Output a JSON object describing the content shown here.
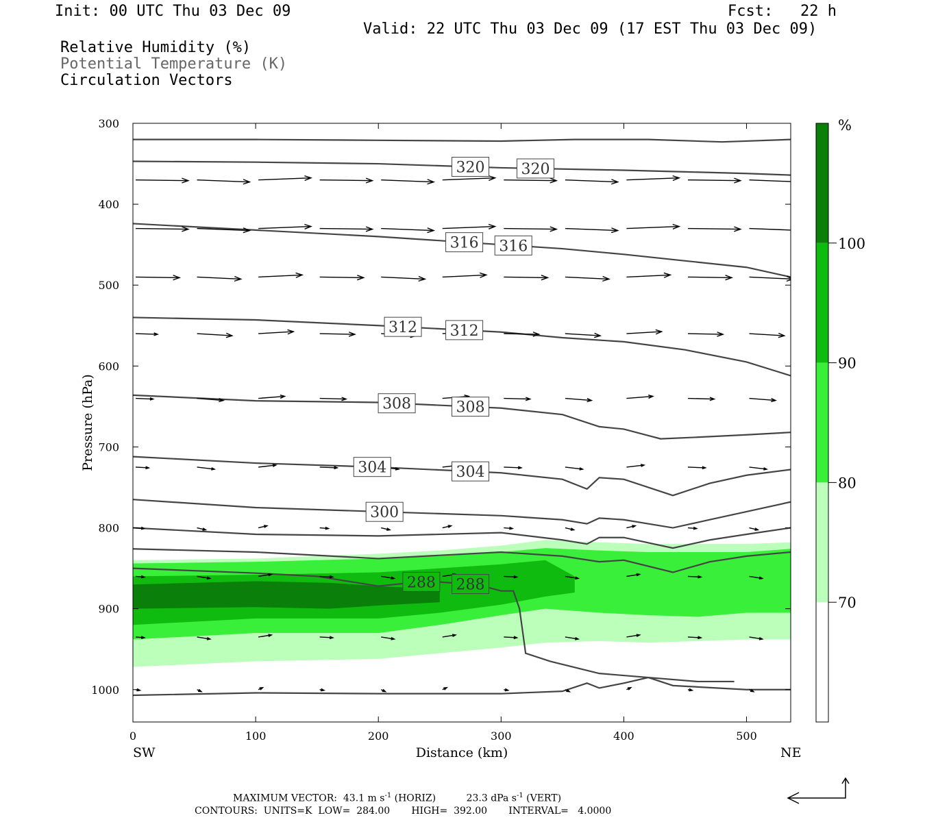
{
  "header": {
    "init": "Init: 00 UTC Thu 03 Dec 09",
    "fcst": "Fcst:   22 h",
    "valid": "Valid: 22 UTC Thu 03 Dec 09 (17 EST Thu 03 Dec 09)",
    "fields": [
      "Relative Humidity (%)",
      "Potential Temperature (K)",
      "Circulation Vectors"
    ]
  },
  "footer": {
    "max_vector_label": "MAXIMUM VECTOR:",
    "horiz_value": "43.1 m s",
    "horiz_unit": "(HORIZ)",
    "vert_value": "23.3 dPa s",
    "vert_unit": "(VERT)",
    "exponent": "-1",
    "contours": "CONTOURS:  UNITS=K  LOW=  284.00       HIGH=  392.00       INTERVAL=   4.0000"
  },
  "colors": {
    "rh_70_80": "#bbffbb",
    "rh_80_90": "#3aef3a",
    "rh_90_100": "#10bb10",
    "rh_100_plus": "#0a7f0a",
    "theta_line": "#444444",
    "vector": "#000000"
  },
  "chart_data": {
    "type": "cross-section",
    "xlabel": "Distance (km)",
    "ylabel": "Pressure (hPa)",
    "xlim": [
      0,
      536
    ],
    "ylim": [
      1040,
      300
    ],
    "x_ticks": [
      0,
      100,
      200,
      300,
      400,
      500
    ],
    "y_ticks": [
      300,
      400,
      500,
      600,
      700,
      800,
      900,
      1000
    ],
    "left_end_label": "SW",
    "right_end_label": "NE",
    "colorbar": {
      "unit": "%",
      "levels": [
        70,
        80,
        90,
        100
      ],
      "colors": [
        "#ffffff",
        "#bbffbb",
        "#3aef3a",
        "#10bb10",
        "#0a7f0a"
      ]
    },
    "theta_contours": [
      {
        "x": [
          0,
          100,
          200,
          300,
          360,
          420,
          480,
          536
        ],
        "p": [
          320,
          320,
          321,
          322,
          320,
          320,
          323,
          320
        ]
      },
      {
        "label": "320",
        "x": [
          0,
          100,
          200,
          300,
          400,
          450,
          500,
          536
        ],
        "p": [
          347,
          348,
          350,
          355,
          358,
          360,
          362,
          364
        ],
        "label_x": [
          275,
          328
        ]
      },
      {
        "label": "316",
        "x": [
          0,
          100,
          200,
          300,
          350,
          400,
          450,
          500,
          536
        ],
        "p": [
          424,
          432,
          440,
          450,
          455,
          462,
          470,
          478,
          490
        ],
        "label_x": [
          270,
          310
        ]
      },
      {
        "label": "312",
        "x": [
          0,
          100,
          200,
          300,
          350,
          400,
          450,
          500,
          536
        ],
        "p": [
          540,
          543,
          550,
          558,
          565,
          570,
          580,
          595,
          612
        ],
        "label_x": [
          220,
          270
        ]
      },
      {
        "label": "308",
        "x": [
          0,
          100,
          200,
          300,
          350,
          380,
          400,
          430,
          460,
          500,
          536
        ],
        "p": [
          636,
          643,
          645,
          652,
          660,
          675,
          678,
          690,
          688,
          685,
          682
        ],
        "label_x": [
          215,
          275
        ]
      },
      {
        "label": "304",
        "x": [
          0,
          100,
          200,
          300,
          350,
          370,
          380,
          400,
          440,
          470,
          500,
          536
        ],
        "p": [
          712,
          720,
          725,
          732,
          740,
          752,
          738,
          740,
          760,
          745,
          735,
          728
        ],
        "label_x": [
          195,
          275
        ]
      },
      {
        "label": "300",
        "x": [
          0,
          100,
          200,
          300,
          350,
          370,
          380,
          400,
          440,
          470,
          500,
          536
        ],
        "p": [
          765,
          775,
          780,
          785,
          790,
          795,
          788,
          790,
          800,
          790,
          780,
          768
        ],
        "label_x": [
          205
        ]
      },
      {
        "x": [
          0,
          100,
          200,
          300,
          350,
          370,
          380,
          400,
          440,
          470,
          500,
          536
        ],
        "p": [
          800,
          808,
          810,
          806,
          815,
          820,
          812,
          812,
          825,
          815,
          808,
          800
        ]
      },
      {
        "x": [
          0,
          100,
          200,
          300,
          350,
          380,
          400,
          440,
          470,
          500,
          536
        ],
        "p": [
          826,
          830,
          838,
          830,
          835,
          842,
          840,
          855,
          842,
          835,
          830
        ]
      },
      {
        "label": "288",
        "x": [
          0,
          100,
          150,
          200,
          240,
          280,
          300,
          310,
          315,
          320,
          340,
          380,
          420,
          460,
          490
        ],
        "p": [
          850,
          856,
          860,
          872,
          866,
          870,
          878,
          878,
          900,
          955,
          965,
          980,
          985,
          990,
          990
        ],
        "label_x": [
          235,
          275
        ]
      },
      {
        "x": [
          0,
          100,
          200,
          300,
          350,
          370,
          380,
          400,
          420,
          440,
          500,
          536
        ],
        "p": [
          1007,
          1004,
          1005,
          1005,
          1002,
          992,
          998,
          992,
          985,
          995,
          1000,
          1000
        ]
      }
    ],
    "rh_bands": [
      {
        "level": 70,
        "x": [
          0,
          100,
          200,
          250,
          300,
          336,
          380,
          420,
          460,
          500,
          536
        ],
        "p_top": [
          840,
          838,
          832,
          828,
          822,
          815,
          818,
          820,
          820,
          820,
          818
        ],
        "p_bottom": [
          972,
          965,
          962,
          955,
          948,
          942,
          940,
          942,
          940,
          938,
          938
        ]
      },
      {
        "level": 80,
        "x": [
          0,
          100,
          200,
          250,
          300,
          336,
          380,
          420,
          460,
          500,
          536
        ],
        "p_top": [
          844,
          842,
          838,
          835,
          830,
          825,
          828,
          830,
          830,
          830,
          826
        ],
        "p_bottom": [
          938,
          930,
          930,
          920,
          908,
          900,
          905,
          908,
          910,
          905,
          905
        ]
      },
      {
        "level": 90,
        "x": [
          0,
          100,
          200,
          250,
          300,
          336,
          360
        ],
        "p_top": [
          860,
          858,
          855,
          850,
          845,
          840,
          860
        ],
        "p_bottom": [
          920,
          912,
          912,
          905,
          895,
          885,
          880
        ]
      },
      {
        "level": 100,
        "x": [
          0,
          100,
          160,
          200,
          250
        ],
        "p_top": [
          870,
          866,
          868,
          872,
          876
        ],
        "p_bottom": [
          900,
          898,
          900,
          896,
          892
        ]
      }
    ],
    "vectors": {
      "x": [
        0,
        50,
        100,
        150,
        200,
        250,
        300,
        350,
        400,
        450,
        500
      ],
      "p": [
        370,
        430,
        490,
        560,
        640,
        725,
        800,
        860,
        935,
        1000
      ],
      "u": [
        [
          12,
          12,
          12,
          12,
          12,
          12,
          12,
          12,
          12,
          12,
          12
        ],
        [
          12,
          12,
          12,
          12,
          12,
          12,
          12,
          12,
          12,
          12,
          12
        ],
        [
          10,
          10,
          10,
          10,
          10,
          10,
          10,
          10,
          10,
          10,
          10
        ],
        [
          5,
          8,
          8,
          8,
          8,
          8,
          8,
          8,
          8,
          8,
          8
        ],
        [
          4,
          6,
          6,
          6,
          6,
          6,
          6,
          6,
          6,
          6,
          6
        ],
        [
          3,
          4,
          4,
          4,
          4,
          4,
          4,
          4,
          4,
          4,
          4
        ],
        [
          2,
          2,
          2,
          2,
          2,
          2,
          2,
          2,
          2,
          2,
          2
        ],
        [
          2,
          3,
          3,
          3,
          3,
          3,
          3,
          3,
          3,
          3,
          3
        ],
        [
          2,
          3,
          3,
          3,
          3,
          3,
          3,
          3,
          3,
          3,
          3
        ],
        [
          1,
          1,
          1,
          1,
          1,
          1,
          1,
          1,
          1,
          1,
          1
        ]
      ]
    }
  }
}
